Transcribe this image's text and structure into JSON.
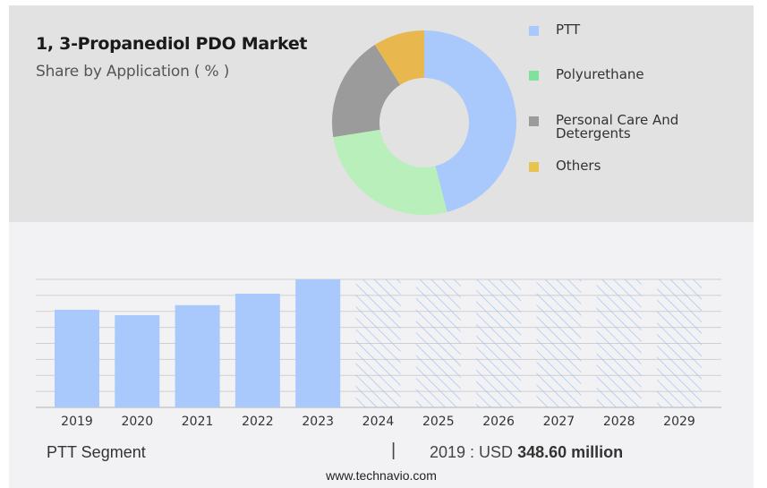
{
  "header": {
    "title": "1, 3-Propanediol PDO Market",
    "subtitle": "Share by Application ( % )"
  },
  "chart_data": [
    {
      "type": "pie",
      "style": "donut",
      "title": "Share by Application ( % )",
      "legend_position": "right",
      "slices": [
        {
          "label": "PTT",
          "value": 46,
          "color": "#a9c9fd",
          "legend_color": "#a9c9fd"
        },
        {
          "label": "Polyurethane",
          "value": 26.5,
          "color": "#b9efbb",
          "legend_color": "#7ee29a"
        },
        {
          "label": "Personal Care And Detergents",
          "value": 18.5,
          "color": "#9b9b9b",
          "legend_color": "#9b9b9b"
        },
        {
          "label": "Others",
          "value": 9,
          "color": "#e8b84f",
          "legend_color": "#e6c44e"
        }
      ]
    },
    {
      "type": "bar",
      "title": "PTT Segment",
      "xlabel": "",
      "ylabel": "",
      "grid": true,
      "categories": [
        "2019",
        "2020",
        "2021",
        "2022",
        "2023",
        "2024",
        "2025",
        "2026",
        "2027",
        "2028",
        "2029"
      ],
      "values": [
        348.6,
        329,
        365,
        406,
        457,
        null,
        null,
        null,
        null,
        null,
        null
      ],
      "forecast": [
        false,
        false,
        false,
        false,
        false,
        true,
        true,
        true,
        true,
        true,
        true
      ],
      "ylim": [
        0,
        457
      ],
      "bar_color": "#a9c9fd",
      "forecast_color": "#9cc0f5"
    }
  ],
  "footer": {
    "segment_label": "PTT Segment",
    "separator": "|",
    "value_prefix": "2019 : USD",
    "value": "348.60 million",
    "website": "www.technavio.com"
  }
}
